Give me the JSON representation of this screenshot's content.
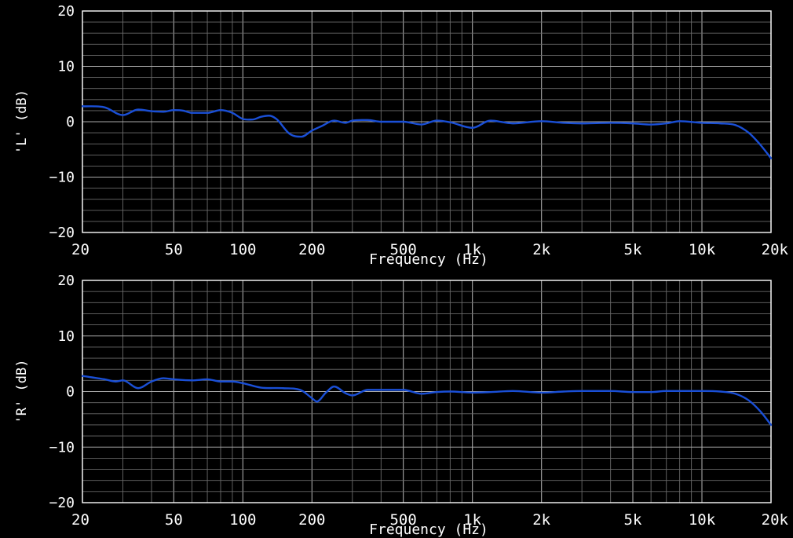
{
  "chart_data": [
    {
      "type": "line",
      "xscale": "log",
      "xlim": [
        20,
        20000
      ],
      "ylim": [
        -20,
        20
      ],
      "grid": true,
      "xlabel": "Frequency (Hz)",
      "ylabel": "'L' (dB)",
      "x_ticks": [
        20,
        50,
        100,
        200,
        500,
        1000,
        2000,
        5000,
        10000,
        20000
      ],
      "x_tick_labels": [
        "20",
        "50",
        "100",
        "200",
        "500",
        "1k",
        "2k",
        "5k",
        "10k",
        "20k"
      ],
      "y_ticks": [
        -20,
        -10,
        0,
        10,
        20
      ],
      "y_tick_labels": [
        "-20",
        "-10",
        "0",
        "10",
        "20"
      ],
      "line_color": "#1a4fd6",
      "series": [
        {
          "x": [
            20,
            25,
            30,
            35,
            40,
            45,
            50,
            55,
            60,
            70,
            80,
            90,
            100,
            110,
            120,
            130,
            140,
            160,
            180,
            200,
            220,
            250,
            280,
            300,
            350,
            400,
            500,
            600,
            700,
            800,
            1000,
            1200,
            1500,
            2000,
            2500,
            3000,
            4000,
            5000,
            6000,
            7000,
            8000,
            10000,
            12000,
            14000,
            16000,
            18000,
            20000
          ],
          "y": [
            2.8,
            2.6,
            1.2,
            2.2,
            1.9,
            1.8,
            2.1,
            2.0,
            1.6,
            1.6,
            2.1,
            1.6,
            0.5,
            0.4,
            0.9,
            1.1,
            0.5,
            -2.2,
            -2.7,
            -1.6,
            -0.8,
            0.2,
            -0.2,
            0.2,
            0.3,
            0.0,
            0.0,
            -0.5,
            0.2,
            -0.1,
            -1.1,
            0.2,
            -0.3,
            0.1,
            -0.2,
            -0.3,
            -0.2,
            -0.3,
            -0.5,
            -0.3,
            0.1,
            -0.2,
            -0.3,
            -0.6,
            -2.0,
            -4.2,
            -6.6
          ]
        }
      ]
    },
    {
      "type": "line",
      "xscale": "log",
      "xlim": [
        20,
        20000
      ],
      "ylim": [
        -20,
        20
      ],
      "grid": true,
      "xlabel": "Frequency (Hz)",
      "ylabel": "'R' (dB)",
      "x_ticks": [
        20,
        50,
        100,
        200,
        500,
        1000,
        2000,
        5000,
        10000,
        20000
      ],
      "x_tick_labels": [
        "20",
        "50",
        "100",
        "200",
        "500",
        "1k",
        "2k",
        "5k",
        "10k",
        "20k"
      ],
      "y_ticks": [
        -20,
        -10,
        0,
        10,
        20
      ],
      "y_tick_labels": [
        "-20",
        "-10",
        "0",
        "10",
        "20"
      ],
      "line_color": "#1a4fd6",
      "series": [
        {
          "x": [
            20,
            25,
            28,
            30,
            35,
            40,
            45,
            50,
            60,
            70,
            80,
            90,
            100,
            120,
            150,
            180,
            200,
            210,
            230,
            250,
            280,
            300,
            350,
            400,
            500,
            600,
            700,
            800,
            1000,
            1200,
            1500,
            2000,
            2500,
            3000,
            4000,
            5000,
            6000,
            7000,
            8000,
            10000,
            12000,
            14000,
            16000,
            18000,
            20000
          ],
          "y": [
            2.8,
            2.2,
            1.8,
            2.0,
            0.6,
            1.8,
            2.4,
            2.2,
            2.0,
            2.2,
            1.8,
            1.8,
            1.5,
            0.7,
            0.6,
            0.2,
            -1.2,
            -1.8,
            -0.2,
            0.9,
            -0.3,
            -0.7,
            0.3,
            0.3,
            0.3,
            -0.4,
            -0.1,
            0.0,
            -0.2,
            -0.1,
            0.1,
            -0.2,
            0.0,
            0.1,
            0.1,
            -0.1,
            -0.1,
            0.1,
            0.1,
            0.1,
            0.0,
            -0.4,
            -1.6,
            -3.6,
            -6.0
          ]
        }
      ]
    }
  ]
}
